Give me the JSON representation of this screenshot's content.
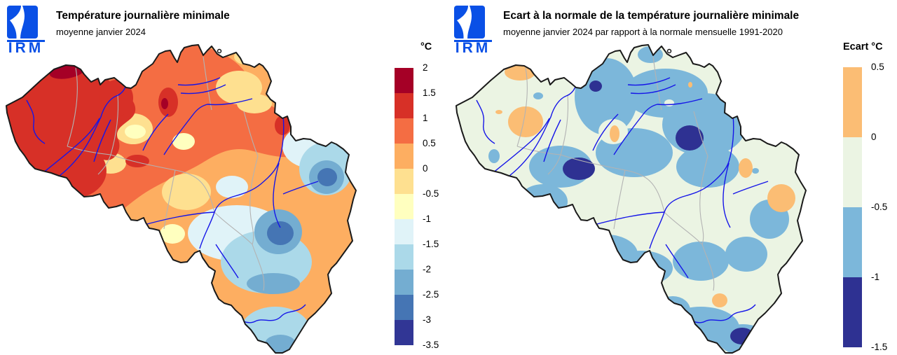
{
  "brand": {
    "logo_text": "IRM",
    "logo_color": "#0a50e6"
  },
  "left_panel": {
    "title": "Température journalière minimale",
    "subtitle": "moyenne janvier 2024",
    "colorbar": {
      "unit_label": "°C",
      "tick_labels": [
        "2",
        "1.5",
        "1",
        "0.5",
        "0",
        "-0.5",
        "-1",
        "-1.5",
        "-2",
        "-2.5",
        "-3",
        "-3.5"
      ],
      "colors": [
        "#a50026",
        "#d73027",
        "#f46d43",
        "#fdae61",
        "#fee090",
        "#ffffbf",
        "#e0f3f8",
        "#abd9e9",
        "#74add1",
        "#4575b4",
        "#313695"
      ]
    }
  },
  "right_panel": {
    "title": "Ecart à la normale de la température journalière minimale",
    "subtitle": "moyenne janvier 2024 par rapport à la normale mensuelle 1991-2020",
    "colorbar": {
      "unit_label": "Ecart °C",
      "tick_labels": [
        "0.5",
        "0",
        "-0.5",
        "-1",
        "-1.5"
      ],
      "colors": [
        "#fbbd74",
        "#ebf4e3",
        "#7cb7da",
        "#2e3192"
      ]
    }
  },
  "map_style": {
    "river_color": "#1515e8",
    "province_border_color": "#b3b3b3",
    "country_border_color": "#1a1a1a"
  }
}
